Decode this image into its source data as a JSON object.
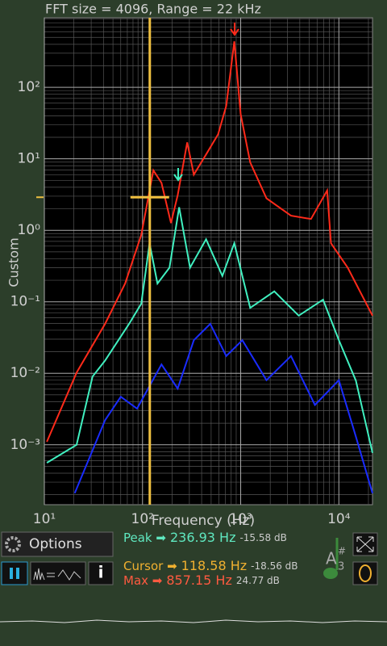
{
  "chart_data": {
    "type": "line",
    "title": "FFT size = 4096, Range = 22 kHz",
    "x_label": "Frequency (Hz)",
    "y_label": "Custom",
    "xlog": true,
    "ylog": true,
    "grid": true,
    "xlim": [
      10,
      22000
    ],
    "ylim": [
      0.000145,
      940
    ],
    "xticks": [
      {
        "value": 10,
        "label": "10¹"
      },
      {
        "value": 100,
        "label": "10²"
      },
      {
        "value": 1000,
        "label": "10³"
      },
      {
        "value": 10000,
        "label": "10⁴"
      }
    ],
    "yticks": [
      {
        "value": 0.001,
        "label": "10⁻³"
      },
      {
        "value": 0.01,
        "label": "10⁻²"
      },
      {
        "value": 0.1,
        "label": "10⁻¹"
      },
      {
        "value": 1,
        "label": "10⁰"
      },
      {
        "value": 10,
        "label": "10¹"
      },
      {
        "value": 100,
        "label": "10²"
      }
    ],
    "cursor": {
      "x": 118.58,
      "y": 2.9,
      "color": "#f0c040"
    },
    "series": [
      {
        "color": "#ff2a1a",
        "x": [
          10.6,
          21.3,
          41.5,
          66.5,
          97,
          129,
          156,
          195,
          228,
          285,
          333,
          444,
          588,
          712,
          860,
          1000,
          1250,
          1830,
          3250,
          5200,
          7600,
          8300,
          12300,
          22000
        ],
        "values": [
          0.0011,
          0.0102,
          0.049,
          0.18,
          0.86,
          6.9,
          4.6,
          1.26,
          3.1,
          17,
          6,
          11.5,
          22,
          55,
          440,
          42,
          8.9,
          2.8,
          1.6,
          1.44,
          3.6,
          0.66,
          0.3,
          0.064
        ]
      },
      {
        "color": "#40f0c0",
        "x": [
          10.6,
          21.3,
          31,
          41.5,
          73,
          97,
          118,
          142,
          188,
          236,
          305,
          444,
          650,
          860,
          1250,
          2200,
          3900,
          6900,
          10000,
          14900,
          22000
        ],
        "values": [
          0.00056,
          0.001,
          0.009,
          0.015,
          0.049,
          0.094,
          0.66,
          0.18,
          0.3,
          2.1,
          0.3,
          0.75,
          0.23,
          0.66,
          0.082,
          0.14,
          0.064,
          0.107,
          0.029,
          0.0079,
          0.00077
        ]
      },
      {
        "color": "#1a2cff",
        "x": [
          20.4,
          41.5,
          60,
          88,
          156,
          228,
          333,
          490,
          712,
          1040,
          1830,
          3250,
          5700,
          10000,
          14900,
          22000
        ],
        "values": [
          0.00021,
          0.0022,
          0.0047,
          0.0032,
          0.0133,
          0.0061,
          0.029,
          0.049,
          0.0174,
          0.029,
          0.008,
          0.0174,
          0.0036,
          0.008,
          0.0013,
          0.00021
        ]
      }
    ]
  },
  "controls": {
    "options": "Options",
    "info": "i",
    "note": "A",
    "accidental": "#",
    "octave": "3"
  },
  "readouts": [
    {
      "label": "Peak ➡",
      "value": "236.93 Hz",
      "db": "-15.58 dB",
      "color": "#5fe8c0"
    },
    {
      "label": "Cursor ➡",
      "value": "118.58 Hz",
      "db": "-18.56 dB",
      "color": "#f0b030"
    },
    {
      "label": "Max ➡",
      "value": "857.15 Hz",
      "db": "24.77 dB",
      "color": "#ff5a40"
    }
  ]
}
